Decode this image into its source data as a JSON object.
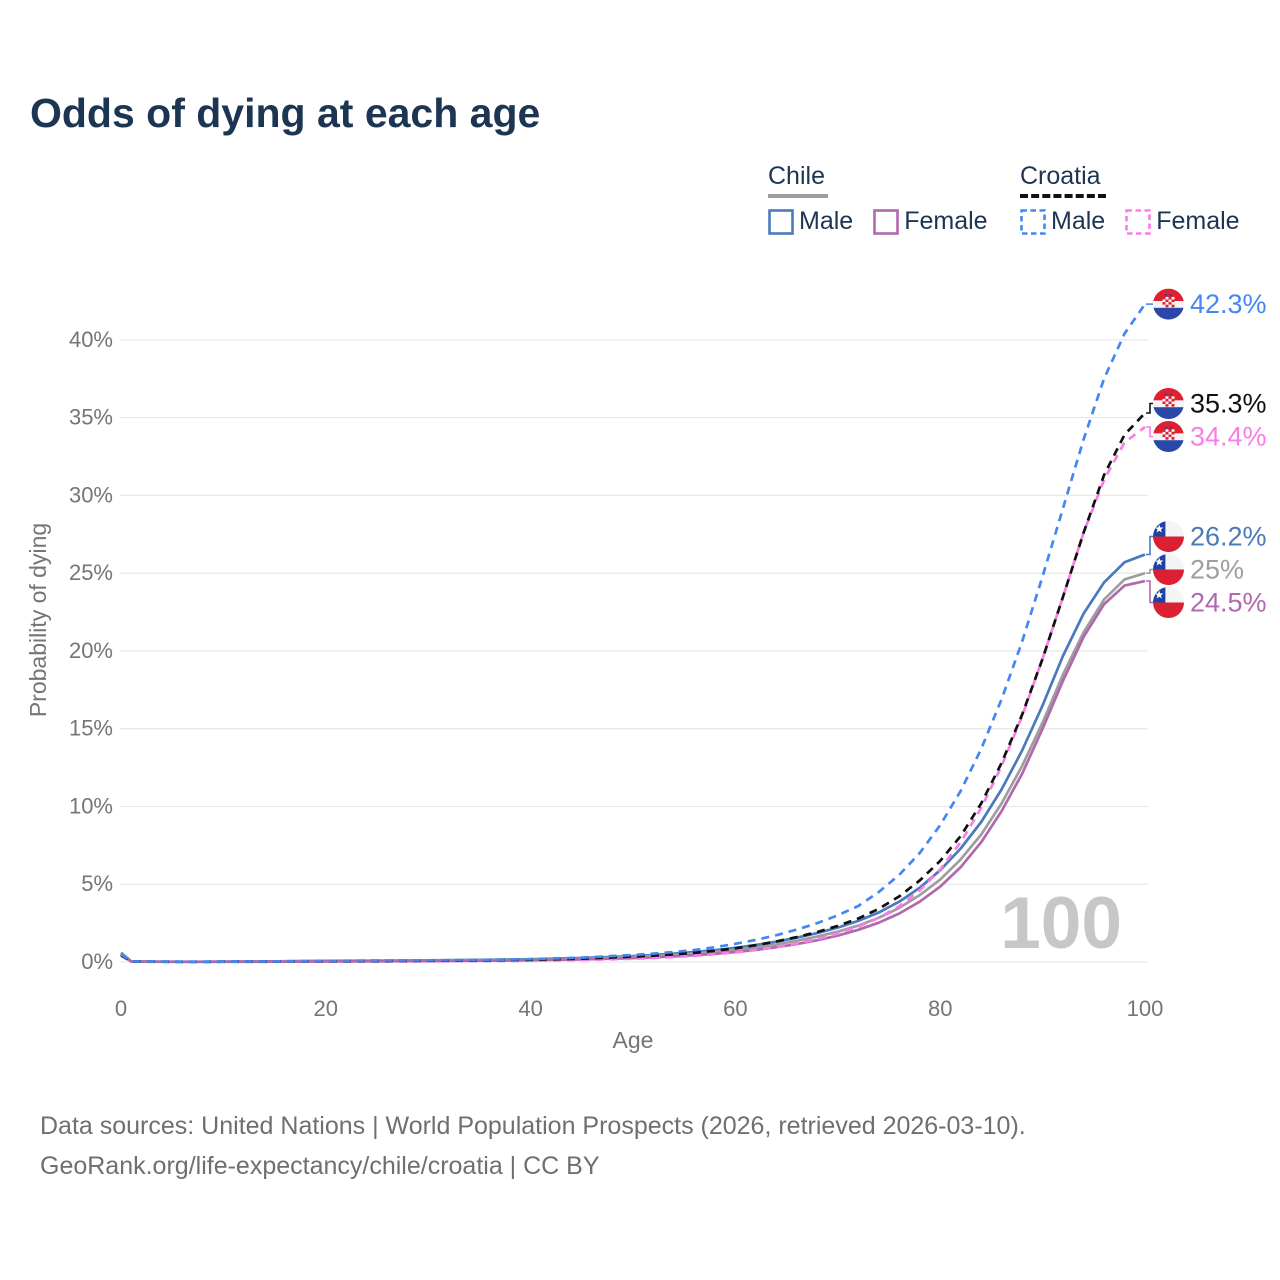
{
  "title": "Odds of dying at each age",
  "legend": {
    "groups": [
      {
        "label": "Chile",
        "line_style": "solid",
        "underline_color": "#9e9e9e",
        "items": [
          {
            "label": "Male",
            "color": "#4a79bd"
          },
          {
            "label": "Female",
            "color": "#b168ad"
          }
        ]
      },
      {
        "label": "Croatia",
        "line_style": "dashed",
        "underline_color": "#111111",
        "items": [
          {
            "label": "Male",
            "color": "#4387f4"
          },
          {
            "label": "Female",
            "color": "#fb7ce8"
          }
        ]
      }
    ]
  },
  "watermark": "100",
  "footer": {
    "line1": "Data sources: United Nations | World Population Prospects (2026, retrieved 2026-03-10).",
    "line2": "GeoRank.org/life-expectancy/chile/croatia | CC BY"
  },
  "chart_data": {
    "type": "line",
    "title": "Odds of dying at each age",
    "xlabel": "Age",
    "ylabel": "Probability of dying",
    "xlim": [
      0,
      100
    ],
    "ylim": [
      0,
      42.5
    ],
    "x_ticks": [
      0,
      20,
      40,
      60,
      80,
      100
    ],
    "y_ticks": [
      0,
      5,
      10,
      15,
      20,
      25,
      30,
      35,
      40
    ],
    "y_tick_labels": [
      "0%",
      "5%",
      "10%",
      "15%",
      "20%",
      "25%",
      "30%",
      "35%",
      "40%"
    ],
    "grid": "horizontal",
    "legend_position": "top-right",
    "x": [
      0,
      1,
      2,
      4,
      6,
      8,
      10,
      15,
      20,
      25,
      30,
      35,
      40,
      45,
      50,
      52,
      54,
      56,
      58,
      60,
      62,
      64,
      66,
      68,
      70,
      72,
      74,
      76,
      78,
      80,
      82,
      84,
      86,
      88,
      90,
      92,
      94,
      96,
      98,
      100
    ],
    "series": [
      {
        "name": "Chile Male",
        "country": "chile",
        "dash": false,
        "color": "#4a79bd",
        "end_label": "26.2%",
        "values": [
          0.6,
          0.04,
          0.03,
          0.02,
          0.02,
          0.02,
          0.025,
          0.045,
          0.07,
          0.09,
          0.11,
          0.14,
          0.18,
          0.26,
          0.38,
          0.45,
          0.54,
          0.64,
          0.76,
          0.91,
          1.09,
          1.31,
          1.56,
          1.86,
          2.21,
          2.64,
          3.18,
          3.88,
          4.77,
          5.9,
          7.3,
          9.0,
          11.1,
          13.6,
          16.5,
          19.7,
          22.4,
          24.4,
          25.7,
          26.2
        ]
      },
      {
        "name": "Chile",
        "country": "chile",
        "dash": false,
        "color": "#9e9e9e",
        "end_label": "25%",
        "values": [
          0.55,
          0.035,
          0.025,
          0.018,
          0.015,
          0.015,
          0.02,
          0.035,
          0.055,
          0.072,
          0.09,
          0.115,
          0.15,
          0.21,
          0.32,
          0.38,
          0.45,
          0.54,
          0.65,
          0.78,
          0.94,
          1.13,
          1.36,
          1.63,
          1.95,
          2.34,
          2.84,
          3.48,
          4.3,
          5.3,
          6.6,
          8.2,
          10.2,
          12.6,
          15.4,
          18.5,
          21.2,
          23.3,
          24.6,
          25.0
        ]
      },
      {
        "name": "Chile Female",
        "country": "chile",
        "dash": false,
        "color": "#b168ad",
        "end_label": "24.5%",
        "values": [
          0.5,
          0.03,
          0.02,
          0.013,
          0.011,
          0.011,
          0.014,
          0.022,
          0.035,
          0.046,
          0.06,
          0.08,
          0.11,
          0.165,
          0.25,
          0.3,
          0.36,
          0.44,
          0.53,
          0.64,
          0.78,
          0.95,
          1.15,
          1.4,
          1.7,
          2.07,
          2.53,
          3.12,
          3.88,
          4.85,
          6.1,
          7.7,
          9.7,
          12.1,
          15.0,
          18.1,
          20.9,
          23.0,
          24.2,
          24.5
        ]
      },
      {
        "name": "Croatia Female",
        "country": "croatia",
        "dash": true,
        "color": "#fb7ce8",
        "end_label": "34.4%",
        "values": [
          0.4,
          0.03,
          0.02,
          0.012,
          0.01,
          0.01,
          0.012,
          0.018,
          0.026,
          0.032,
          0.042,
          0.058,
          0.085,
          0.13,
          0.21,
          0.26,
          0.32,
          0.4,
          0.5,
          0.62,
          0.77,
          0.96,
          1.19,
          1.47,
          1.83,
          2.27,
          2.84,
          3.58,
          4.6,
          5.95,
          7.7,
          9.9,
          12.6,
          15.8,
          19.5,
          23.5,
          27.6,
          31.0,
          33.4,
          34.4
        ]
      },
      {
        "name": "Croatia",
        "country": "croatia",
        "dash": true,
        "color": "#111111",
        "end_label": "35.3%",
        "values": [
          0.45,
          0.035,
          0.025,
          0.018,
          0.015,
          0.015,
          0.018,
          0.03,
          0.05,
          0.065,
          0.08,
          0.1,
          0.14,
          0.21,
          0.34,
          0.41,
          0.49,
          0.59,
          0.72,
          0.88,
          1.08,
          1.32,
          1.6,
          1.93,
          2.32,
          2.8,
          3.42,
          4.22,
          5.24,
          6.5,
          8.1,
          10.2,
          12.8,
          15.9,
          19.5,
          23.5,
          27.6,
          31.3,
          33.9,
          35.3
        ]
      },
      {
        "name": "Croatia Male",
        "country": "croatia",
        "dash": true,
        "color": "#4387f4",
        "end_label": "42.3%",
        "values": [
          0.5,
          0.04,
          0.03,
          0.02,
          0.02,
          0.02,
          0.02,
          0.04,
          0.07,
          0.09,
          0.1,
          0.13,
          0.18,
          0.28,
          0.45,
          0.54,
          0.64,
          0.77,
          0.95,
          1.17,
          1.42,
          1.72,
          2.08,
          2.5,
          3.0,
          3.6,
          4.5,
          5.6,
          7.0,
          8.8,
          11.0,
          13.7,
          16.9,
          20.6,
          24.8,
          29.2,
          33.6,
          37.5,
          40.4,
          42.3
        ]
      }
    ],
    "flag_colors": {
      "chile": {
        "blue": "#1f43a5",
        "red": "#da2032",
        "white": "#f4f4f4"
      },
      "croatia": {
        "red": "#e01f2f",
        "blue": "#2b47a7",
        "white": "#f4f4f4"
      }
    }
  }
}
